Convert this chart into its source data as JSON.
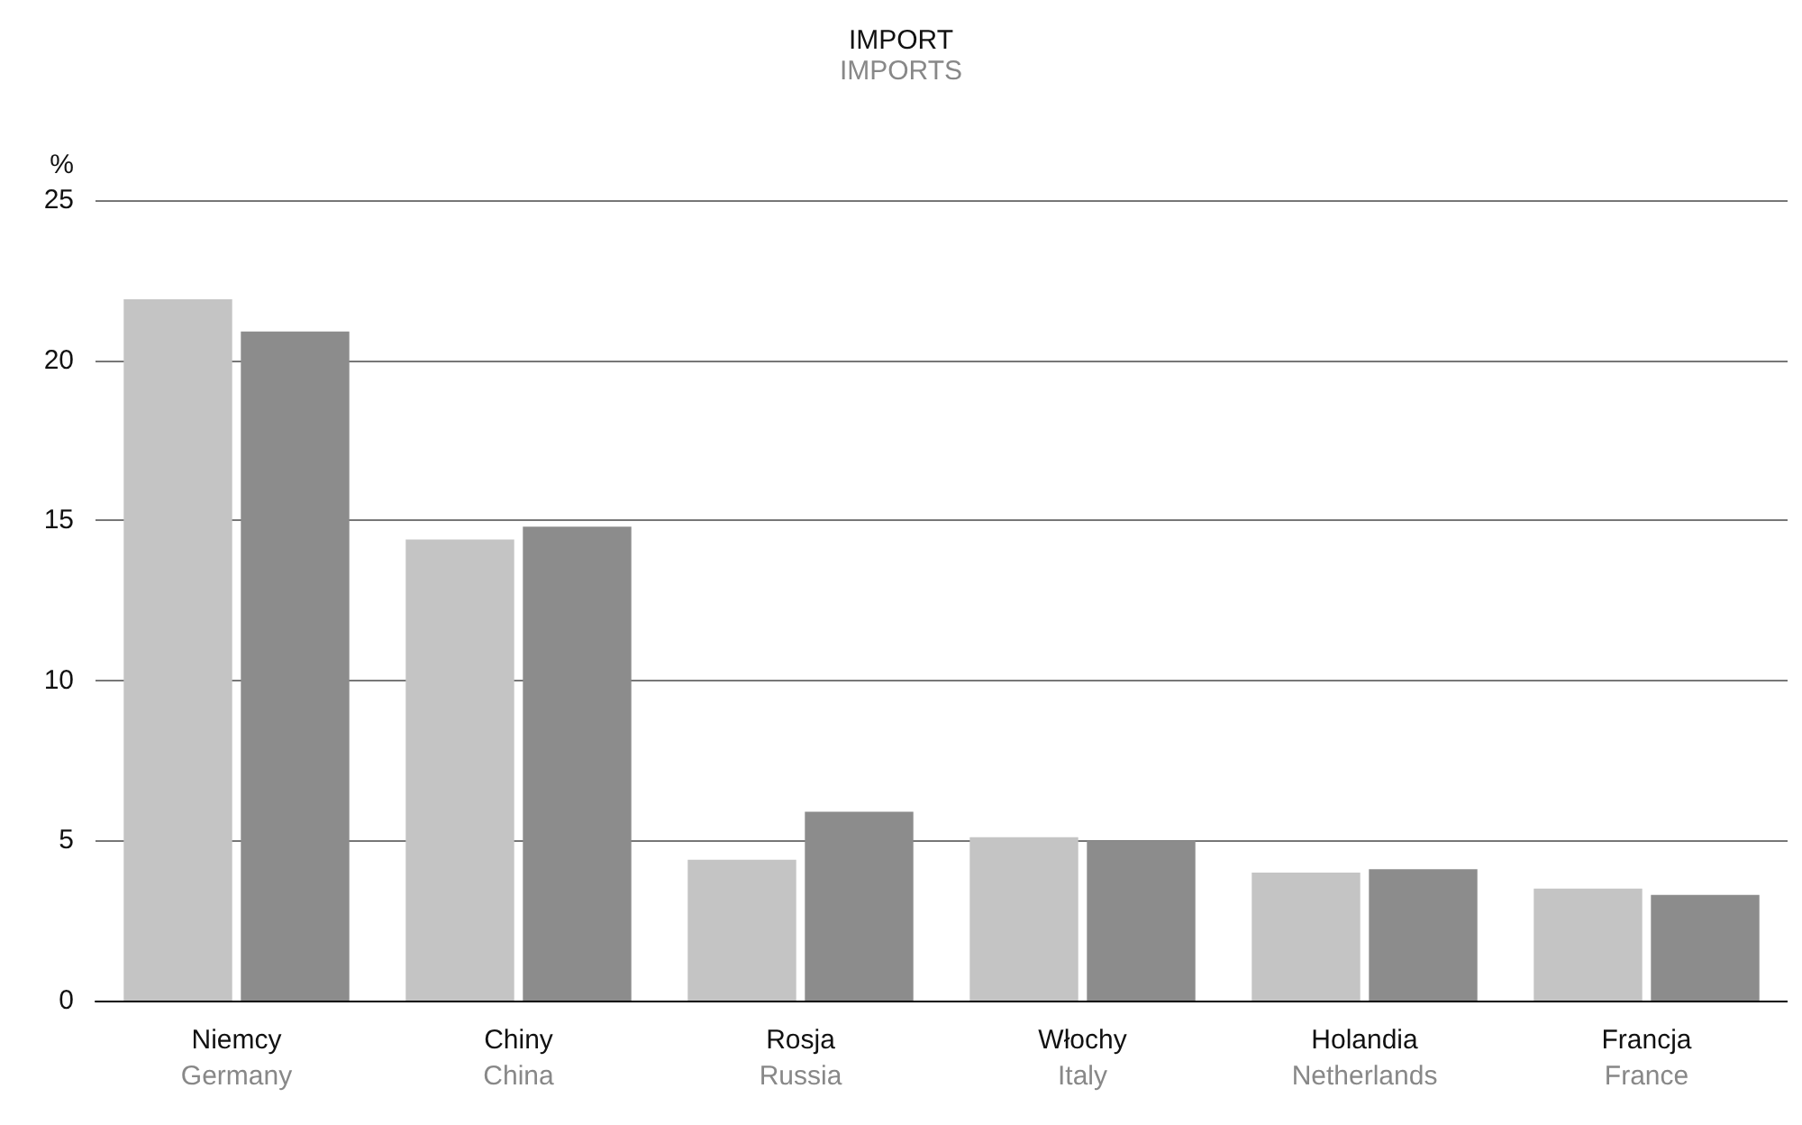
{
  "chart_data": {
    "type": "bar",
    "title": "IMPORT",
    "subtitle": "IMPORTS",
    "ylabel": "%",
    "categories": [
      "Niemcy\nGermany",
      "Chiny\nChina",
      "Rosja\nRussia",
      "Włochy\nItaly",
      "Holandia\nNetherlands",
      "Francja\nFrance"
    ],
    "series": [
      {
        "color": "#c4c4c4",
        "values": [
          21.9,
          14.4,
          4.4,
          5.1,
          4.0,
          3.5
        ]
      },
      {
        "color": "#8c8c8c",
        "values": [
          20.9,
          14.8,
          5.9,
          5.0,
          4.1,
          3.3
        ]
      }
    ],
    "ylim": [
      0,
      25
    ],
    "yticks": [
      0,
      5,
      10,
      15,
      20,
      25
    ],
    "grid": "y"
  }
}
